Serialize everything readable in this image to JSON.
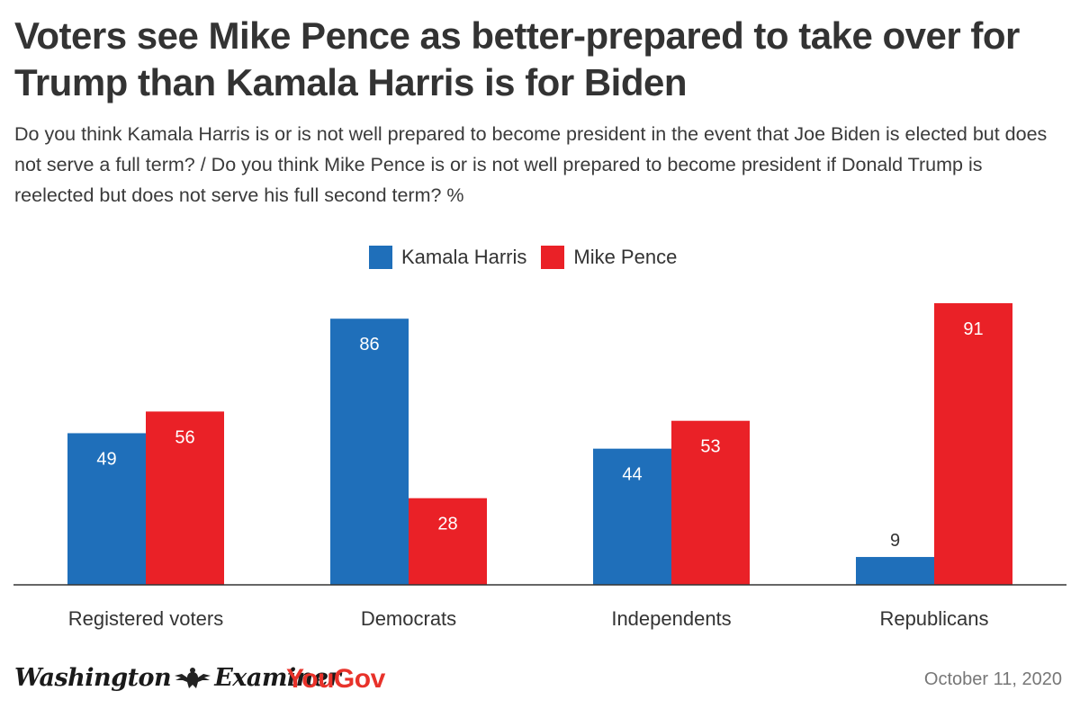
{
  "title": "Voters see Mike Pence as better-prepared to take over for Trump than Kamala Harris is for Biden",
  "subtitle": "Do you think Kamala Harris is or is not well prepared to become president in the event that Joe Biden is elected but does not serve a full term? / Do you think Mike Pence is or is not well prepared to become president if Donald Trump is reelected but does not serve his full second term? %",
  "footer": {
    "logo_washington_examiner_left": "Washington",
    "logo_washington_examiner_right": "Examiner",
    "logo_yougov": "YouGov",
    "date": "October 11, 2020"
  },
  "colors": {
    "harris": "#1f6fba",
    "pence": "#ea2127",
    "yougov": "#e8322a",
    "axis": "#333333"
  },
  "chart_data": {
    "type": "bar",
    "categories": [
      "Registered voters",
      "Democrats",
      "Independents",
      "Republicans"
    ],
    "series": [
      {
        "name": "Kamala Harris",
        "values": [
          49,
          86,
          44,
          9
        ]
      },
      {
        "name": "Mike Pence",
        "values": [
          56,
          28,
          53,
          91
        ]
      }
    ],
    "ylim": [
      0,
      91
    ],
    "legend": "top-center",
    "grid": false
  }
}
